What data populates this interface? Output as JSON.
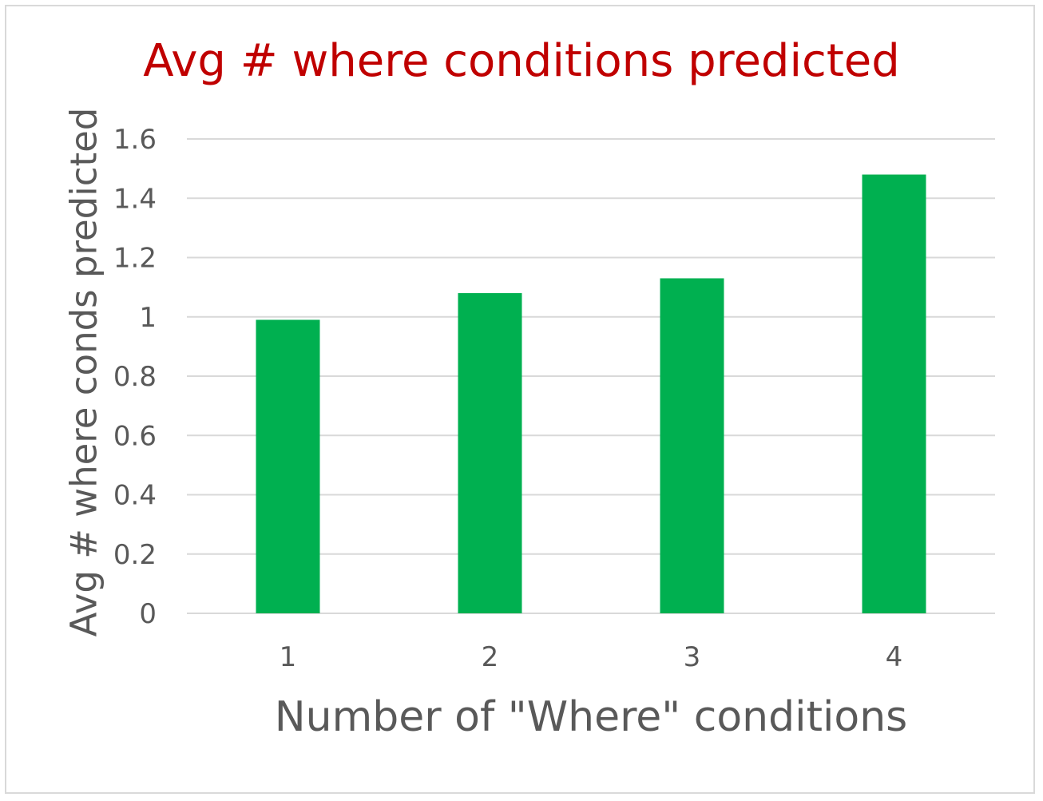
{
  "chart_data": {
    "type": "bar",
    "title": "Avg # where conditions predicted",
    "xlabel": "Number of \"Where\" conditions",
    "ylabel": "Avg # where conds predicted",
    "categories": [
      "1",
      "2",
      "3",
      "4"
    ],
    "values": [
      0.99,
      1.08,
      1.13,
      1.48
    ],
    "ylim": [
      0,
      1.6
    ],
    "yticks": [
      0,
      0.2,
      0.4,
      0.6,
      0.8,
      1,
      1.2,
      1.4,
      1.6
    ],
    "ytick_labels": [
      "0",
      "0.2",
      "0.4",
      "0.6",
      "0.8",
      "1",
      "1.2",
      "1.4",
      "1.6"
    ],
    "grid": true,
    "legend": "none",
    "colors": {
      "bar": "#00b050",
      "title": "#c00000",
      "gridline": "#d9d9d9",
      "axis_text": "#595959"
    }
  }
}
